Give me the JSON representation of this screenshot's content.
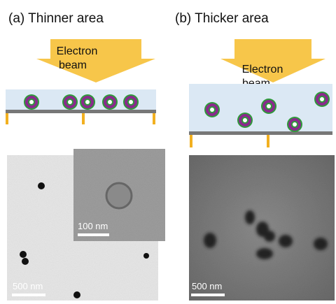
{
  "panel_a": {
    "title": "(a) Thinner area",
    "arrow_label": [
      "Electron",
      "beam"
    ],
    "scale_bar": "500 nm",
    "inset_scale_bar": "100 nm"
  },
  "panel_b": {
    "title": "(b) Thicker area",
    "arrow_label": [
      "Electron",
      "beam"
    ],
    "scale_bar": "500 nm"
  }
}
